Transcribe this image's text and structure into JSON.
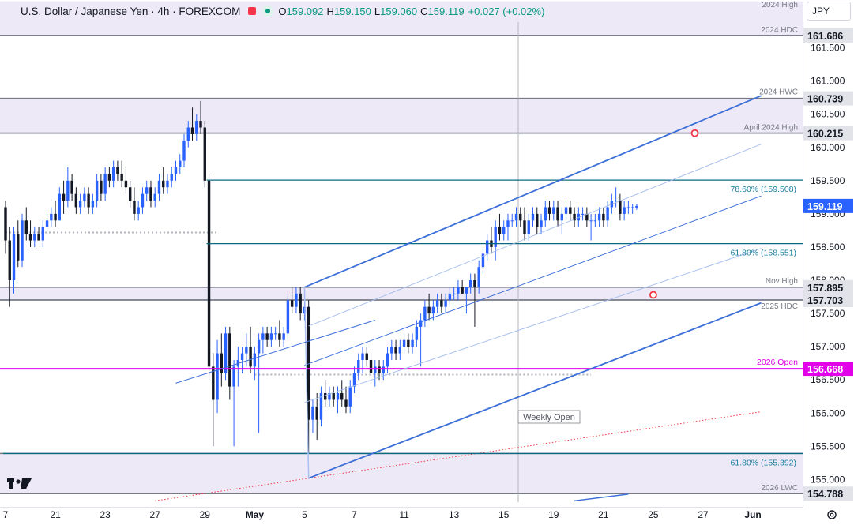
{
  "header": {
    "title": "U.S. Dollar / Japanese Yen · 4h · FOREXCOM",
    "ohlc": [
      {
        "label": "O",
        "value": "159.092"
      },
      {
        "label": "H",
        "value": "159.150"
      },
      {
        "label": "L",
        "value": "159.060"
      },
      {
        "label": "C",
        "value": "159.119"
      },
      {
        "label": "",
        "value": "+0.027 (+0.02%)"
      }
    ]
  },
  "currency_button": "JPY",
  "settings_icon": "gear-icon",
  "colors": {
    "up": "#2962ff",
    "down": "#131722",
    "zone": "#ede9f7",
    "zone_line": "#787b86",
    "fib_line": "#0c6a80",
    "fib_text": "#1a7fa0",
    "pitchfork": "#3d6fd9",
    "pitchfork_light": "#a9c0ee",
    "open_line": "#e100e8",
    "price_bg": "#2962ff",
    "pivot": "#f23645",
    "dotted_red": "#f23645"
  },
  "chart_data": {
    "type": "candlestick",
    "price_range": [
      154.66,
      162.22
    ],
    "y_ticks": [
      155.0,
      155.5,
      156.0,
      156.5,
      157.0,
      157.5,
      158.0,
      158.5,
      159.0,
      159.5,
      160.0,
      160.5,
      161.0,
      161.5
    ],
    "x_labels": [
      {
        "label": "7",
        "bar": 0
      },
      {
        "label": "21",
        "bar": 12
      },
      {
        "label": "23",
        "bar": 24
      },
      {
        "label": "27",
        "bar": 36
      },
      {
        "label": "29",
        "bar": 48
      },
      {
        "label": "May",
        "bar": 60
      },
      {
        "label": "5",
        "bar": 72
      },
      {
        "label": "7",
        "bar": 84
      },
      {
        "label": "11",
        "bar": 96
      },
      {
        "label": "13",
        "bar": 108
      },
      {
        "label": "15",
        "bar": 120
      },
      {
        "label": "19",
        "bar": 132
      },
      {
        "label": "21",
        "bar": 144
      },
      {
        "label": "25",
        "bar": 156
      },
      {
        "label": "27",
        "bar": 168
      },
      {
        "label": "Jun",
        "bar": 180
      }
    ],
    "last_bar_index": 152,
    "candles": [
      [
        0,
        159.1,
        159.2,
        158.4,
        158.6
      ],
      [
        1,
        158.6,
        158.8,
        157.6,
        158.0
      ],
      [
        2,
        158.0,
        158.8,
        157.8,
        158.7
      ],
      [
        3,
        158.7,
        158.9,
        158.2,
        158.3
      ],
      [
        4,
        158.3,
        159.0,
        158.2,
        158.9
      ],
      [
        5,
        158.9,
        159.1,
        158.6,
        158.7
      ],
      [
        6,
        158.7,
        158.9,
        158.5,
        158.6
      ],
      [
        7,
        158.6,
        158.8,
        158.5,
        158.7
      ],
      [
        8,
        158.7,
        158.8,
        158.6,
        158.6
      ],
      [
        9,
        158.6,
        158.9,
        158.5,
        158.8
      ],
      [
        10,
        158.8,
        159.0,
        158.7,
        158.9
      ],
      [
        11,
        158.9,
        159.1,
        158.8,
        159.0
      ],
      [
        12,
        159.0,
        159.2,
        158.8,
        158.9
      ],
      [
        13,
        158.9,
        159.4,
        158.9,
        159.3
      ],
      [
        14,
        159.3,
        159.5,
        159.0,
        159.2
      ],
      [
        15,
        159.2,
        159.7,
        159.1,
        159.5
      ],
      [
        16,
        159.5,
        159.6,
        159.2,
        159.3
      ],
      [
        17,
        159.3,
        159.4,
        159.0,
        159.1
      ],
      [
        18,
        159.1,
        159.3,
        159.0,
        159.2
      ],
      [
        19,
        159.2,
        159.4,
        159.1,
        159.3
      ],
      [
        20,
        159.3,
        159.4,
        159.0,
        159.1
      ],
      [
        21,
        159.1,
        159.3,
        159.0,
        159.2
      ],
      [
        22,
        159.2,
        159.6,
        159.1,
        159.5
      ],
      [
        23,
        159.5,
        159.6,
        159.2,
        159.3
      ],
      [
        24,
        159.3,
        159.7,
        159.2,
        159.6
      ],
      [
        25,
        159.6,
        159.7,
        159.4,
        159.5
      ],
      [
        26,
        159.5,
        159.8,
        159.4,
        159.7
      ],
      [
        27,
        159.7,
        159.8,
        159.5,
        159.6
      ],
      [
        28,
        159.6,
        159.8,
        159.4,
        159.5
      ],
      [
        29,
        159.5,
        159.7,
        159.3,
        159.4
      ],
      [
        30,
        159.4,
        159.5,
        159.1,
        159.2
      ],
      [
        31,
        159.2,
        159.4,
        158.9,
        159.0
      ],
      [
        32,
        159.0,
        159.2,
        158.9,
        159.1
      ],
      [
        33,
        159.1,
        159.4,
        159.0,
        159.3
      ],
      [
        34,
        159.3,
        159.5,
        159.2,
        159.4
      ],
      [
        35,
        159.4,
        159.5,
        159.1,
        159.2
      ],
      [
        36,
        159.2,
        159.4,
        159.1,
        159.3
      ],
      [
        37,
        159.3,
        159.6,
        159.2,
        159.5
      ],
      [
        38,
        159.5,
        159.7,
        159.3,
        159.4
      ],
      [
        39,
        159.4,
        159.6,
        159.3,
        159.5
      ],
      [
        40,
        159.5,
        159.7,
        159.4,
        159.6
      ],
      [
        41,
        159.6,
        159.8,
        159.5,
        159.7
      ],
      [
        42,
        159.7,
        159.9,
        159.6,
        159.8
      ],
      [
        43,
        159.8,
        160.2,
        159.7,
        160.1
      ],
      [
        44,
        160.1,
        160.4,
        160.0,
        160.3
      ],
      [
        45,
        160.3,
        160.6,
        160.1,
        160.2
      ],
      [
        46,
        160.2,
        160.5,
        160.1,
        160.4
      ],
      [
        47,
        160.4,
        160.7,
        160.2,
        160.3
      ],
      [
        48,
        160.3,
        160.4,
        159.4,
        159.5
      ],
      [
        49,
        159.5,
        159.6,
        156.5,
        156.7
      ],
      [
        50,
        156.7,
        156.9,
        155.5,
        156.2
      ],
      [
        51,
        156.2,
        157.1,
        156.0,
        156.9
      ],
      [
        52,
        156.9,
        157.2,
        156.4,
        156.6
      ],
      [
        53,
        156.6,
        157.3,
        156.5,
        157.2
      ],
      [
        54,
        157.2,
        157.3,
        156.2,
        156.4
      ],
      [
        55,
        156.4,
        156.8,
        155.5,
        156.7
      ],
      [
        56,
        156.7,
        157.0,
        156.4,
        156.8
      ],
      [
        57,
        156.8,
        157.0,
        156.6,
        156.9
      ],
      [
        58,
        156.9,
        157.2,
        156.7,
        157.0
      ],
      [
        59,
        157.0,
        157.3,
        156.6,
        156.7
      ],
      [
        60,
        156.7,
        157.0,
        156.5,
        156.9
      ],
      [
        61,
        156.9,
        157.2,
        155.7,
        157.1
      ],
      [
        62,
        157.1,
        157.3,
        156.9,
        157.2
      ],
      [
        63,
        157.2,
        157.3,
        157.0,
        157.1
      ],
      [
        64,
        157.1,
        157.3,
        157.0,
        157.2
      ],
      [
        65,
        157.2,
        157.3,
        157.1,
        157.2
      ],
      [
        66,
        157.2,
        157.4,
        157.0,
        157.1
      ],
      [
        67,
        157.1,
        157.3,
        157.0,
        157.2
      ],
      [
        68,
        157.2,
        157.8,
        157.1,
        157.7
      ],
      [
        69,
        157.7,
        157.9,
        157.5,
        157.6
      ],
      [
        70,
        157.6,
        157.9,
        157.5,
        157.8
      ],
      [
        71,
        157.8,
        157.9,
        157.4,
        157.5
      ],
      [
        72,
        157.5,
        157.8,
        157.4,
        157.6
      ],
      [
        73,
        157.6,
        157.7,
        155.4,
        155.9
      ],
      [
        74,
        155.9,
        156.2,
        155.7,
        156.1
      ],
      [
        75,
        156.1,
        156.3,
        155.6,
        155.9
      ],
      [
        76,
        155.9,
        156.4,
        155.8,
        156.3
      ],
      [
        77,
        156.3,
        156.5,
        156.1,
        156.2
      ],
      [
        78,
        156.2,
        156.4,
        156.1,
        156.3
      ],
      [
        79,
        156.3,
        156.4,
        156.1,
        156.2
      ],
      [
        80,
        156.2,
        156.4,
        156.0,
        156.3
      ],
      [
        81,
        156.3,
        156.5,
        156.1,
        156.2
      ],
      [
        82,
        156.2,
        156.4,
        156.0,
        156.1
      ],
      [
        83,
        156.1,
        156.5,
        156.0,
        156.4
      ],
      [
        84,
        156.4,
        156.7,
        156.3,
        156.6
      ],
      [
        85,
        156.6,
        156.9,
        156.5,
        156.8
      ],
      [
        86,
        156.8,
        157.0,
        156.6,
        156.9
      ],
      [
        87,
        156.9,
        157.0,
        156.7,
        156.8
      ],
      [
        88,
        156.8,
        156.9,
        156.5,
        156.6
      ],
      [
        89,
        156.6,
        156.8,
        156.4,
        156.7
      ],
      [
        90,
        156.7,
        156.8,
        156.5,
        156.6
      ],
      [
        91,
        156.6,
        156.8,
        156.5,
        156.7
      ],
      [
        92,
        156.7,
        157.0,
        156.6,
        156.9
      ],
      [
        93,
        156.9,
        157.1,
        156.8,
        157.0
      ],
      [
        94,
        157.0,
        157.1,
        156.8,
        156.9
      ],
      [
        95,
        156.9,
        157.1,
        156.8,
        157.0
      ],
      [
        96,
        157.0,
        157.2,
        156.9,
        157.1
      ],
      [
        97,
        157.1,
        157.2,
        156.9,
        157.0
      ],
      [
        98,
        157.0,
        157.2,
        156.9,
        157.1
      ],
      [
        99,
        157.1,
        157.4,
        157.0,
        157.3
      ],
      [
        100,
        157.3,
        157.5,
        156.7,
        157.4
      ],
      [
        101,
        157.4,
        157.7,
        157.3,
        157.6
      ],
      [
        102,
        157.6,
        157.8,
        157.4,
        157.5
      ],
      [
        103,
        157.5,
        157.7,
        157.4,
        157.6
      ],
      [
        104,
        157.6,
        157.8,
        157.5,
        157.7
      ],
      [
        105,
        157.7,
        157.8,
        157.5,
        157.6
      ],
      [
        106,
        157.6,
        157.8,
        157.5,
        157.7
      ],
      [
        107,
        157.7,
        157.9,
        157.6,
        157.8
      ],
      [
        108,
        157.8,
        157.9,
        157.7,
        157.8
      ],
      [
        109,
        157.8,
        158.0,
        157.7,
        157.9
      ],
      [
        110,
        157.9,
        158.0,
        157.8,
        157.8
      ],
      [
        111,
        157.8,
        157.9,
        157.5,
        157.9
      ],
      [
        112,
        157.9,
        158.1,
        157.8,
        158.0
      ],
      [
        113,
        158.0,
        158.1,
        157.3,
        157.9
      ],
      [
        114,
        157.9,
        158.3,
        157.8,
        158.2
      ],
      [
        115,
        158.2,
        158.5,
        158.1,
        158.4
      ],
      [
        116,
        158.4,
        158.7,
        158.3,
        158.6
      ],
      [
        117,
        158.6,
        158.8,
        158.4,
        158.5
      ],
      [
        118,
        158.5,
        158.9,
        158.3,
        158.8
      ],
      [
        119,
        158.8,
        159.0,
        158.6,
        158.7
      ],
      [
        120,
        158.7,
        158.9,
        158.6,
        158.8
      ],
      [
        121,
        158.8,
        159.0,
        158.6,
        158.9
      ],
      [
        122,
        158.9,
        159.0,
        158.8,
        158.9
      ],
      [
        123,
        158.9,
        159.1,
        158.8,
        159.0
      ],
      [
        124,
        159.0,
        159.1,
        158.8,
        158.9
      ],
      [
        125,
        158.9,
        159.1,
        158.6,
        158.7
      ],
      [
        126,
        158.7,
        159.0,
        158.6,
        158.9
      ],
      [
        127,
        158.9,
        159.1,
        158.8,
        159.0
      ],
      [
        128,
        159.0,
        159.1,
        158.7,
        158.8
      ],
      [
        129,
        158.8,
        159.0,
        158.7,
        158.9
      ],
      [
        130,
        158.9,
        159.2,
        158.8,
        159.1
      ],
      [
        131,
        159.1,
        159.2,
        158.9,
        159.0
      ],
      [
        132,
        159.0,
        159.2,
        158.9,
        159.1
      ],
      [
        133,
        159.1,
        159.2,
        158.8,
        158.9
      ],
      [
        134,
        158.9,
        159.1,
        158.7,
        159.0
      ],
      [
        135,
        159.0,
        159.2,
        158.9,
        159.1
      ],
      [
        136,
        159.1,
        159.2,
        158.9,
        159.0
      ],
      [
        137,
        159.0,
        159.1,
        158.8,
        158.9
      ],
      [
        138,
        158.9,
        159.1,
        158.8,
        159.0
      ],
      [
        139,
        159.0,
        159.1,
        158.9,
        159.0
      ],
      [
        140,
        159.0,
        159.1,
        158.8,
        158.9
      ],
      [
        141,
        158.9,
        159.0,
        158.6,
        158.9
      ],
      [
        142,
        158.9,
        159.0,
        158.8,
        158.9
      ],
      [
        143,
        158.9,
        159.1,
        158.8,
        159.0
      ],
      [
        144,
        159.0,
        159.1,
        158.8,
        158.9
      ],
      [
        145,
        158.9,
        159.2,
        158.8,
        159.1
      ],
      [
        146,
        159.1,
        159.3,
        159.0,
        159.2
      ],
      [
        147,
        159.2,
        159.4,
        159.1,
        159.2
      ],
      [
        148,
        159.2,
        159.3,
        158.9,
        159.0
      ],
      [
        149,
        159.0,
        159.2,
        158.9,
        159.1
      ],
      [
        150,
        159.1,
        159.2,
        159.0,
        159.1
      ],
      [
        151,
        159.1,
        159.15,
        159.0,
        159.1
      ],
      [
        152,
        159.092,
        159.15,
        159.06,
        159.119
      ]
    ],
    "zones": [
      {
        "name": "2024 High",
        "top": 162.2,
        "bottom": 161.686,
        "label": "2024 High",
        "price_label": ""
      },
      {
        "name": "2024 HDC",
        "top": 161.686,
        "bottom": 161.686,
        "label": "2024 HDC",
        "price_label": "161.686"
      },
      {
        "name": "2024 HWC",
        "top": 160.739,
        "bottom": 160.215,
        "label": "2024 HWC",
        "price_label": "160.739"
      },
      {
        "name": "April 2024 High",
        "top": 160.215,
        "bottom": 160.215,
        "label": "April 2024 High",
        "price_label": "160.215"
      },
      {
        "name": "Nov High",
        "top": 157.895,
        "bottom": 157.703,
        "label": "Nov High",
        "price_label": "157.895"
      },
      {
        "name": "2025 HDC",
        "top": 157.703,
        "bottom": 157.703,
        "label": "2025 HDC",
        "price_label": "157.703"
      },
      {
        "name": "Fib 61.8 low",
        "top": 155.392,
        "bottom": 154.788,
        "label": "",
        "price_label": ""
      },
      {
        "name": "2026 LWC",
        "top": 154.788,
        "bottom": 154.788,
        "label": "2026 LWC",
        "price_label": "154.788"
      }
    ],
    "fib_levels": [
      {
        "label": "78.60% (159.508)",
        "price": 159.508,
        "from_bar": 49
      },
      {
        "label": "61.80% (158.551)",
        "price": 158.551,
        "from_bar": 49
      },
      {
        "label": "61.80% (155.392)",
        "price": 155.392,
        "from_bar": 0
      }
    ],
    "open_level": {
      "label": "2026 Open",
      "price": 156.668,
      "price_label": "156.668"
    },
    "current_price": {
      "value": 159.119,
      "label": "159.119"
    },
    "annotation": "Weekly Open",
    "dotted_levels": [
      {
        "price": 158.72,
        "from_bar": 0,
        "to_bar": 51
      },
      {
        "price": 156.58,
        "from_bar": 60,
        "to_bar": 141
      }
    ],
    "pitchfork": {
      "median": [
        [
          72,
          157.895
        ],
        [
          182,
          160.78
        ]
      ],
      "lower": [
        [
          73,
          155.02
        ],
        [
          182,
          157.66
        ]
      ],
      "inner_lines": [
        [
          [
            73,
            157.31
          ],
          [
            182,
            160.05
          ]
        ],
        [
          [
            72,
            156.72
          ],
          [
            182,
            159.27
          ]
        ],
        [
          [
            72,
            156.16
          ],
          [
            182,
            158.48
          ]
        ]
      ],
      "rise_leg": [
        [
          72,
          157.895
        ],
        [
          73,
          155.02
        ]
      ],
      "base_line": [
        [
          41,
          156.45
        ],
        [
          89,
          157.4
        ]
      ]
    },
    "pivots": [
      [
        166,
        160.215
      ],
      [
        156,
        157.78
      ]
    ],
    "dotted_trend": [
      [
        36,
        154.68
      ],
      [
        182,
        156.02
      ]
    ],
    "blue_stub": [
      [
        137,
        154.68
      ],
      [
        150,
        154.78
      ]
    ]
  }
}
